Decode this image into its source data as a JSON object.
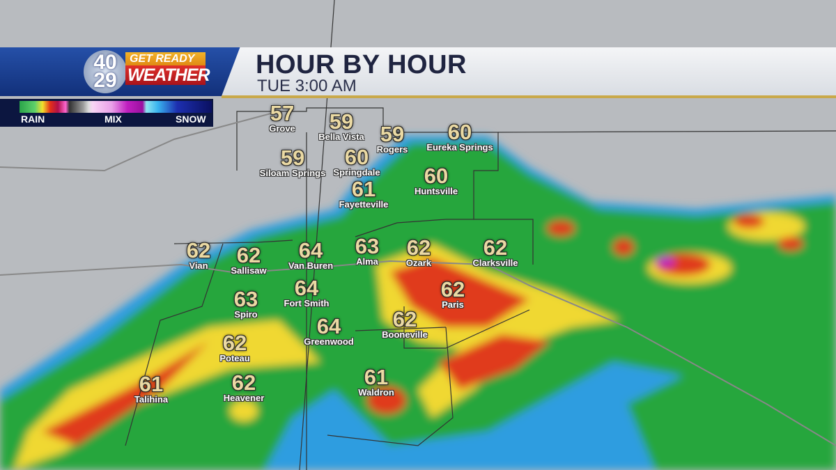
{
  "header": {
    "title": "HOUR BY HOUR",
    "subtitle": "TUE 3:00 AM"
  },
  "logo": {
    "station_number": "40 29",
    "tagline_top": "GET READY",
    "tagline_bottom": "WEATHER"
  },
  "legend": {
    "labels": [
      "RAIN",
      "MIX",
      "SNOW"
    ]
  },
  "colors": {
    "rain_light": "#2aa34a",
    "rain_moderate": "#f3e02c",
    "rain_heavy": "#e33018",
    "extreme": "#b0104a",
    "mix": "#c020c0",
    "snow": "#1d2fb0",
    "header_blue": "#1f3f95",
    "accent_gold": "#c9a94a"
  },
  "cities": [
    {
      "name": "Grove",
      "temp": "57"
    },
    {
      "name": "Bella Vista",
      "temp": "59"
    },
    {
      "name": "Rogers",
      "temp": "59"
    },
    {
      "name": "Eureka Springs",
      "temp": "60"
    },
    {
      "name": "Siloam Springs",
      "temp": "59"
    },
    {
      "name": "Springdale",
      "temp": "60"
    },
    {
      "name": "Huntsville",
      "temp": "60"
    },
    {
      "name": "Fayetteville",
      "temp": "61"
    },
    {
      "name": "Vian",
      "temp": "62"
    },
    {
      "name": "Sallisaw",
      "temp": "62"
    },
    {
      "name": "Van Buren",
      "temp": "64"
    },
    {
      "name": "Alma",
      "temp": "63"
    },
    {
      "name": "Ozark",
      "temp": "62"
    },
    {
      "name": "Clarksville",
      "temp": "62"
    },
    {
      "name": "Fort Smith",
      "temp": "64"
    },
    {
      "name": "Paris",
      "temp": "62"
    },
    {
      "name": "Spiro",
      "temp": "63"
    },
    {
      "name": "Greenwood",
      "temp": "64"
    },
    {
      "name": "Booneville",
      "temp": "62"
    },
    {
      "name": "Poteau",
      "temp": "62"
    },
    {
      "name": "Heavener",
      "temp": "62"
    },
    {
      "name": "Talihina",
      "temp": "61"
    },
    {
      "name": "Waldron",
      "temp": "61"
    }
  ]
}
